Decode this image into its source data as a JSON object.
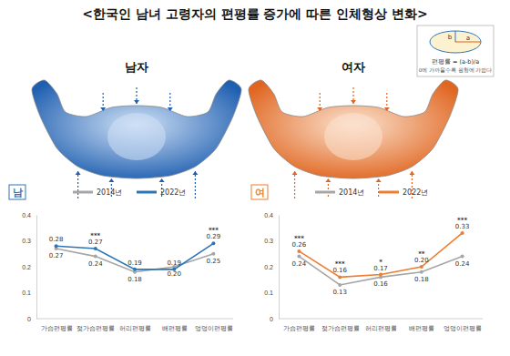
{
  "title": "<한국인 남녀 고령자의 편평률 증가에 따른 인체형상 변화>",
  "figures": [
    "남자",
    "여자"
  ],
  "inset": {
    "formula": "편평률 = (a-b)/a",
    "note": "0에 가까울수록 원형에 가깝다",
    "axis_labels": [
      "a",
      "b"
    ]
  },
  "chart_data": [
    {
      "type": "line",
      "title": "남",
      "categories": [
        "가슴편평률",
        "젖가슴편평률",
        "허리편평률",
        "배편평률",
        "엉덩이편평률"
      ],
      "series": [
        {
          "name": "2014년",
          "color": "#a6a6a6",
          "values": [
            0.27,
            0.24,
            0.18,
            0.2,
            0.25
          ],
          "value_labels": [
            "0.27",
            "0.24",
            "0.18",
            "0.20",
            "0.25"
          ]
        },
        {
          "name": "2022년",
          "color": "#2e75b6",
          "values": [
            0.28,
            0.27,
            0.19,
            0.19,
            0.29
          ],
          "value_labels": [
            "0.28",
            "0.27",
            "0.19",
            "0.19",
            "0.29"
          ],
          "significance": [
            null,
            "***",
            null,
            null,
            "***"
          ]
        }
      ],
      "ylim": [
        0,
        0.4
      ],
      "yticks": [
        0,
        0.1,
        0.2,
        0.3,
        0.4
      ],
      "grid": false,
      "legend": "top",
      "data_labels": true,
      "marker": "circle"
    },
    {
      "type": "line",
      "title": "여",
      "categories": [
        "가슴편평률",
        "젖가슴편평률",
        "허리편평률",
        "배편평률",
        "엉덩이편평률"
      ],
      "series": [
        {
          "name": "2014년",
          "color": "#a6a6a6",
          "values": [
            0.24,
            0.13,
            0.16,
            0.18,
            0.24
          ],
          "value_labels": [
            "0.24",
            "0.13",
            "0.16",
            "0.18",
            "0.24"
          ]
        },
        {
          "name": "2022년",
          "color": "#ed7d31",
          "values": [
            0.26,
            0.16,
            0.17,
            0.2,
            0.33
          ],
          "value_labels": [
            "0.26",
            "0.16",
            "0.17",
            "0.20",
            "0.33"
          ],
          "significance": [
            "***",
            "***",
            "*",
            "**",
            "***"
          ]
        }
      ],
      "ylim": [
        0,
        0.4
      ],
      "yticks": [
        0,
        0.1,
        0.2,
        0.3,
        0.4
      ],
      "grid": false,
      "legend": "top",
      "data_labels": true,
      "marker": "circle"
    }
  ]
}
